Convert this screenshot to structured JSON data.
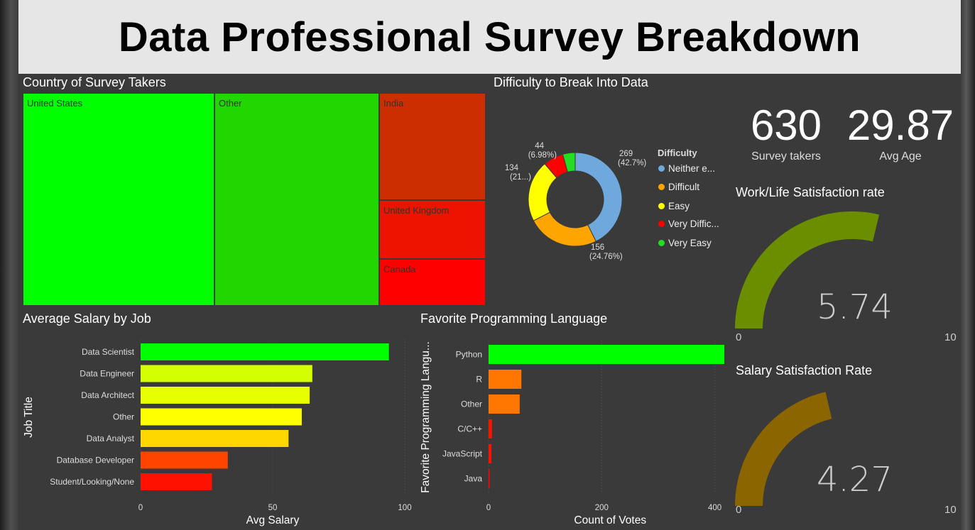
{
  "title": "Data Professional Survey Breakdown",
  "treemap": {
    "title": "Country of Survey Takers",
    "items": [
      {
        "label": "United States",
        "color": "#00ff00"
      },
      {
        "label": "Other",
        "color": "#22d600"
      },
      {
        "label": "India",
        "color": "#cc2e00"
      },
      {
        "label": "United Kingdom",
        "color": "#ee1200"
      },
      {
        "label": "Canada",
        "color": "#ff0000"
      }
    ]
  },
  "donut": {
    "title": "Difficulty to Break Into Data",
    "legend_title": "Difficulty",
    "slices": [
      {
        "name": "Neither e...",
        "value": 269,
        "pct_label": "(42.7%)",
        "color": "#6fa8dc"
      },
      {
        "name": "Difficult",
        "value": 156,
        "pct_label": "(24.76%)",
        "color": "#ffa500"
      },
      {
        "name": "Easy",
        "value": 134,
        "pct_label": "(21...)",
        "color": "#ffff00"
      },
      {
        "name": "Very Diffic...",
        "value": 44,
        "pct_label": "(6.98%)",
        "color": "#ff0000"
      },
      {
        "name": "Very Easy",
        "value": 27,
        "pct_label": "",
        "color": "#22dd22"
      }
    ]
  },
  "kpis": [
    {
      "value": "630",
      "label": "Survey takers"
    },
    {
      "value": "29.87",
      "label": "Avg Age"
    }
  ],
  "gauges": [
    {
      "title": "Work/Life Satisfaction rate",
      "value": 5.74,
      "value_label": "5.74",
      "min": "0",
      "max": "10",
      "color": "#6b8e00"
    },
    {
      "title": "Salary Satisfaction Rate",
      "value": 4.27,
      "value_label": "4.27",
      "min": "0",
      "max": "10",
      "color": "#8b6500"
    }
  ],
  "chart_data": [
    {
      "type": "bar",
      "title": "Average Salary by Job",
      "xlabel": "Avg Salary",
      "ylabel": "Job Title",
      "categories": [
        "Data Scientist",
        "Data Engineer",
        "Data Architect",
        "Other",
        "Data Analyst",
        "Database Developer",
        "Student/Looking/None"
      ],
      "values": [
        94,
        65,
        64,
        61,
        56,
        33,
        27
      ],
      "colors": [
        "#00ff00",
        "#d4ff00",
        "#e8ff00",
        "#ffff00",
        "#ffd700",
        "#ff4400",
        "#ff1100"
      ],
      "xlim": [
        0,
        100
      ],
      "xticks": [
        "0",
        "50",
        "100"
      ]
    },
    {
      "type": "bar",
      "title": "Favorite Programming Language",
      "xlabel": "Count of Votes",
      "ylabel": "Favorite Programming Langu...",
      "categories": [
        "Python",
        "R",
        "Other",
        "C/C++",
        "JavaScript",
        "Java"
      ],
      "values": [
        420,
        58,
        55,
        6,
        5,
        2
      ],
      "colors": [
        "#00ff00",
        "#ff7700",
        "#ff7700",
        "#ff1100",
        "#ff1100",
        "#ff0000"
      ],
      "xlim": [
        0,
        430
      ],
      "xticks": [
        "0",
        "200",
        "400"
      ],
      "xtick_values": [
        0,
        200,
        400
      ]
    }
  ]
}
